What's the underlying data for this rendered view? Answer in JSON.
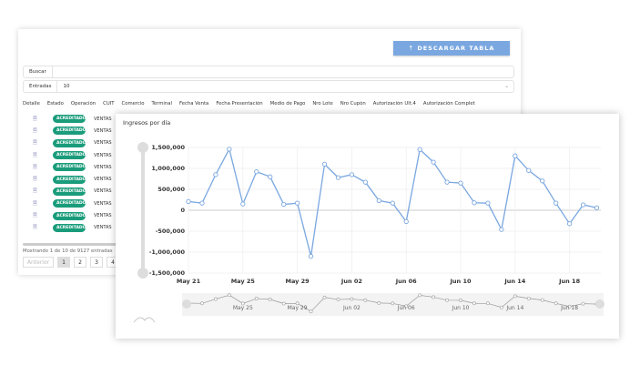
{
  "toolbar": {
    "download_label": "⇡ DESCARGAR TABLA"
  },
  "search": {
    "label": "Buscar",
    "value": ""
  },
  "entries": {
    "label": "Entradas",
    "value": "10"
  },
  "table": {
    "headers": [
      "Detalle",
      "Estado",
      "Operación",
      "CUIT",
      "Comercio",
      "Terminal",
      "Fecha Venta",
      "Fecha Presentación",
      "Medio de Pago",
      "Nro Lote",
      "Nro Cupón",
      "Autorización Ult.4",
      "Autorización Complet"
    ],
    "rows": [
      {
        "estado": "ACREDITADO",
        "operacion": "VENTAS"
      },
      {
        "estado": "ACREDITADO",
        "operacion": "VENTAS"
      },
      {
        "estado": "ACREDITADO",
        "operacion": "VENTAS"
      },
      {
        "estado": "ACREDITADO",
        "operacion": "VENTAS"
      },
      {
        "estado": "ACREDITADO",
        "operacion": "VENTAS"
      },
      {
        "estado": "ACREDITADO",
        "operacion": "VENTAS"
      },
      {
        "estado": "ACREDITADO",
        "operacion": "VENTAS"
      },
      {
        "estado": "ACREDITADO",
        "operacion": "VENTAS"
      },
      {
        "estado": "ACREDITADO",
        "operacion": "VENTAS"
      },
      {
        "estado": "ACREDITADO",
        "operacion": "VENTAS"
      }
    ],
    "badge_color": "#1a9c7b",
    "info": "Mostrando 1 de 10 de 9127 entradas",
    "pager": {
      "prev": "Anterior",
      "pages": [
        "1",
        "2",
        "3",
        "4"
      ],
      "current": "1"
    }
  },
  "chart_data": {
    "type": "line",
    "title": "Ingresos por día",
    "x": [
      "May 21",
      "May 22",
      "May 23",
      "May 24",
      "May 25",
      "May 26",
      "May 27",
      "May 28",
      "May 29",
      "May 30",
      "May 31",
      "Jun 01",
      "Jun 02",
      "Jun 03",
      "Jun 04",
      "Jun 05",
      "Jun 06",
      "Jun 07",
      "Jun 08",
      "Jun 09",
      "Jun 10",
      "Jun 11",
      "Jun 12",
      "Jun 13",
      "Jun 14",
      "Jun 15",
      "Jun 16",
      "Jun 17",
      "Jun 18",
      "Jun 19",
      "Jun 20"
    ],
    "values": [
      210000,
      170000,
      850000,
      1460000,
      150000,
      920000,
      800000,
      140000,
      170000,
      -1100000,
      1100000,
      780000,
      850000,
      670000,
      230000,
      170000,
      -270000,
      1450000,
      1150000,
      670000,
      650000,
      180000,
      170000,
      -460000,
      1300000,
      950000,
      700000,
      170000,
      -320000,
      130000,
      60000
    ],
    "ylim": [
      -1500000,
      1500000
    ],
    "yticks": [
      "1,500,000",
      "1,000,000",
      "500,000",
      "0",
      "-500,000",
      "-1,000,000",
      "-1,500,000"
    ],
    "xticks": [
      "May 21",
      "May 25",
      "May 29",
      "Jun 02",
      "Jun 06",
      "Jun 10",
      "Jun 14",
      "Jun 18"
    ],
    "navigator_ticks": [
      "May 25",
      "May 29",
      "Jun 02",
      "Jun 06",
      "Jun 10",
      "Jun 14",
      "Jun 18"
    ],
    "grid": true,
    "color": "#7aa7e0"
  }
}
